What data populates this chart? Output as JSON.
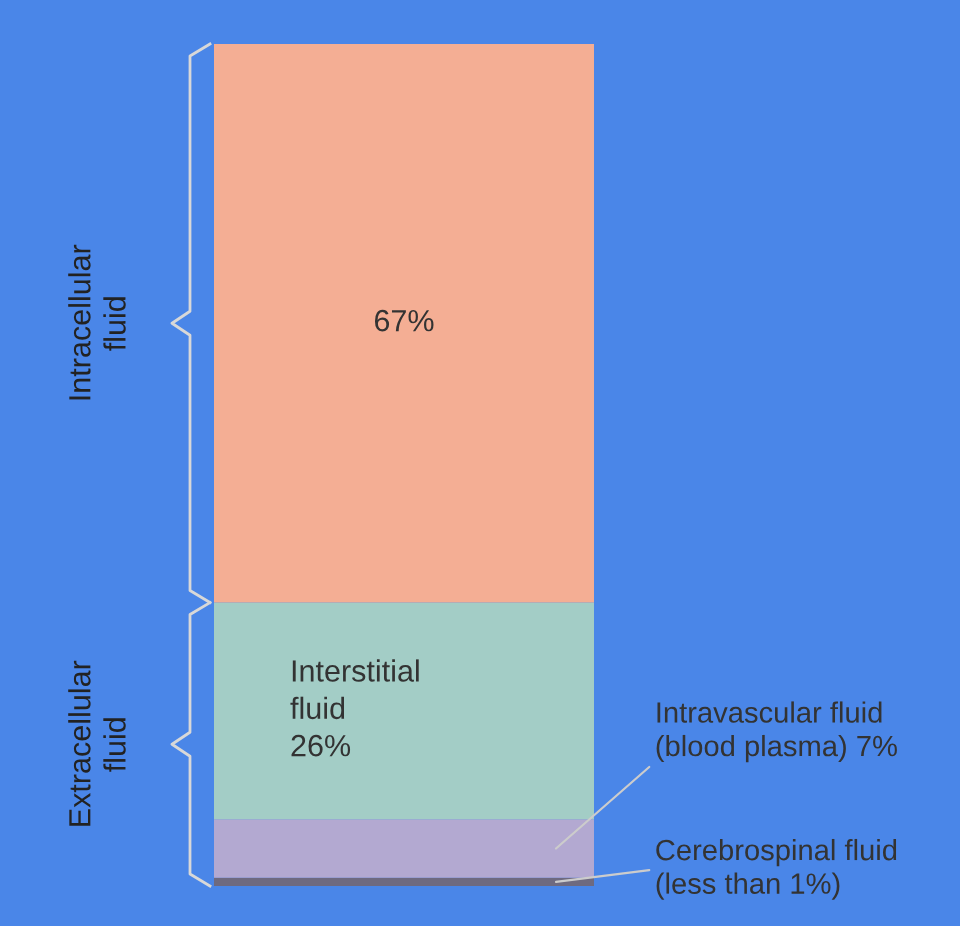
{
  "chart_data": {
    "type": "bar",
    "stacked": true,
    "categories": [
      null
    ],
    "ylim": [
      0,
      101
    ],
    "tick_labels": false,
    "series": [
      {
        "color": "#6e6a80",
        "values": [
          1
        ],
        "value_labels": [
          "Cerebrospinal fluid\n(less than 1%)"
        ]
      },
      {
        "color": "#b3a9d1",
        "values": [
          7
        ],
        "value_labels": [
          "Intravascular fluid\n(blood plasma) 7%"
        ]
      },
      {
        "color": "#a3cdc6",
        "values": [
          26
        ],
        "value_labels": [
          "Interstitial\nfluid\n26%"
        ]
      },
      {
        "color": "#f4ae94",
        "values": [
          67
        ],
        "value_labels": [
          "67%"
        ]
      }
    ],
    "annotations": [
      "Intracellular fluid",
      "Extracellular fluid"
    ]
  }
}
